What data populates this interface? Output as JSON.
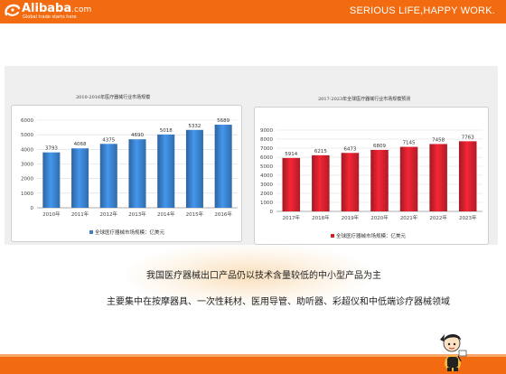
{
  "header": {
    "logo_name": "Alibaba",
    "logo_suffix": ".com",
    "logo_tagline": "Global trade starts here",
    "slogan": "SERIOUS LIFE,HAPPY WORK."
  },
  "colors": {
    "brand_orange": "#f26b10",
    "bar_blue": "#3a7fc9",
    "bar_red": "#d0202e"
  },
  "text": {
    "line1": "我国医疗器械出口产品仍以技术含量较低的中小型产品为主",
    "line2": "主要集中在按摩器具、一次性耗材、医用导管、助听器、彩超仪和中低端诊疗器械领域"
  },
  "chart_data": [
    {
      "type": "bar",
      "title": "2010-2016年医疗器械行业市场规模",
      "categories": [
        "2010年",
        "2011年",
        "2012年",
        "2013年",
        "2014年",
        "2015年",
        "2016年"
      ],
      "series": [
        {
          "name": "全球医疗器械市场规模：亿美元",
          "values": [
            3793,
            4068,
            4375,
            4690,
            5018,
            5332,
            5689
          ]
        }
      ],
      "ylim": [
        0,
        6000
      ],
      "yticks": [
        0,
        1000,
        2000,
        3000,
        4000,
        5000,
        6000
      ],
      "grid": true,
      "legend": "bottom",
      "color": "#3a7fc9"
    },
    {
      "type": "bar",
      "title": "2017-2023年全球医疗器械行业市场规模预测",
      "categories": [
        "2017年",
        "2018年",
        "2019年",
        "2020年",
        "2021年",
        "2022年",
        "2023年"
      ],
      "series": [
        {
          "name": "全球医疗器械市场规模：亿美元",
          "values": [
            5914,
            6215,
            6473,
            6809,
            7145,
            7458,
            7763
          ]
        }
      ],
      "ylim": [
        0,
        9000
      ],
      "yticks": [
        0,
        1000,
        2000,
        3000,
        4000,
        5000,
        6000,
        7000,
        8000,
        9000
      ],
      "grid": true,
      "legend": "bottom",
      "color": "#d0202e"
    }
  ]
}
